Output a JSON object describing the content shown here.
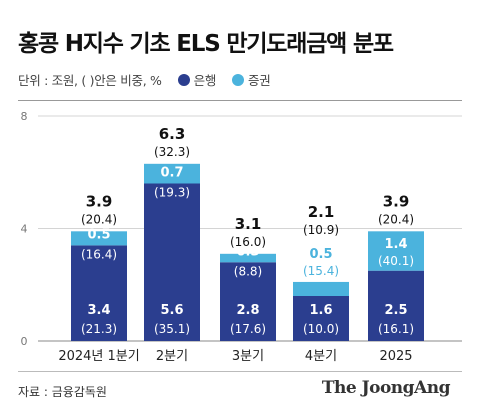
{
  "title": "홍콩 H지수 기초 ELS 만기도래금액 분포",
  "unit_note": "단위 : 조원, ( )안은 비중, %",
  "source": "자료 : 금융감독원",
  "brand": "The JoongAng",
  "colors": {
    "bank": "#2b3e8f",
    "securities": "#4bb3dd"
  },
  "chart_data": {
    "type": "bar",
    "stacked": true,
    "categories": [
      "2024년 1분기",
      "2분기",
      "3분기",
      "4분기",
      "2025"
    ],
    "series": [
      {
        "name": "은행",
        "values": [
          3.4,
          5.6,
          2.8,
          1.6,
          2.5
        ],
        "labels": [
          "3.4",
          "5.6",
          "2.8",
          "1.6",
          "2.5"
        ],
        "shares": [
          "(21.3)",
          "(35.1)",
          "(17.6)",
          "(10.0)",
          "(16.1)"
        ]
      },
      {
        "name": "증권",
        "values": [
          0.5,
          0.7,
          0.3,
          0.5,
          1.4
        ],
        "labels": [
          "0.5",
          "0.7",
          "0.3",
          "0.5",
          "1.4"
        ],
        "shares": [
          "(16.4)",
          "(19.3)",
          "(8.8)",
          "(15.4)",
          "(40.1)"
        ]
      }
    ],
    "totals": [
      "3.9",
      "6.3",
      "3.1",
      "2.1",
      "3.9"
    ],
    "total_shares": [
      "(20.4)",
      "(32.3)",
      "(16.0)",
      "(10.9)",
      "(20.4)"
    ],
    "y_ticks": [
      "0",
      "4",
      "8"
    ],
    "ylim": [
      0,
      8
    ],
    "grid": true
  }
}
